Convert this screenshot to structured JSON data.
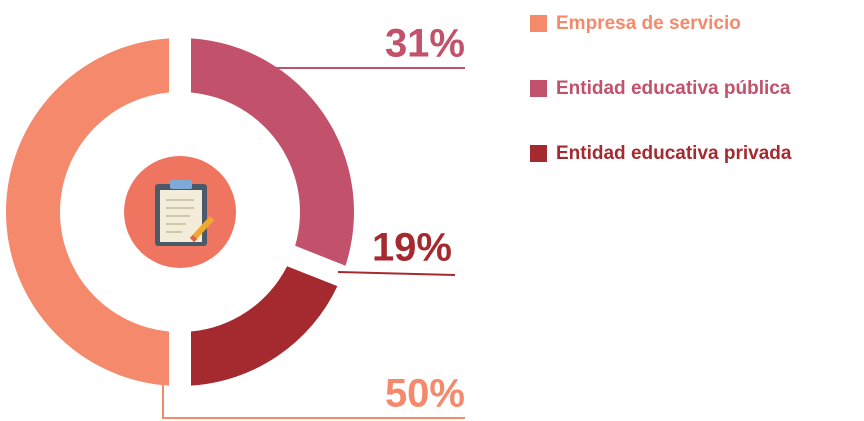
{
  "chart_data": {
    "type": "pie",
    "donut": true,
    "categories": [
      "Empresa de servicio",
      "Entidad educativa pública",
      "Entidad educativa privada"
    ],
    "values": [
      50,
      31,
      19
    ],
    "value_labels": [
      "50%",
      "31%",
      "19%"
    ],
    "colors": [
      "#f4896b",
      "#c2516b",
      "#a52a30"
    ],
    "legend": "right"
  }
}
